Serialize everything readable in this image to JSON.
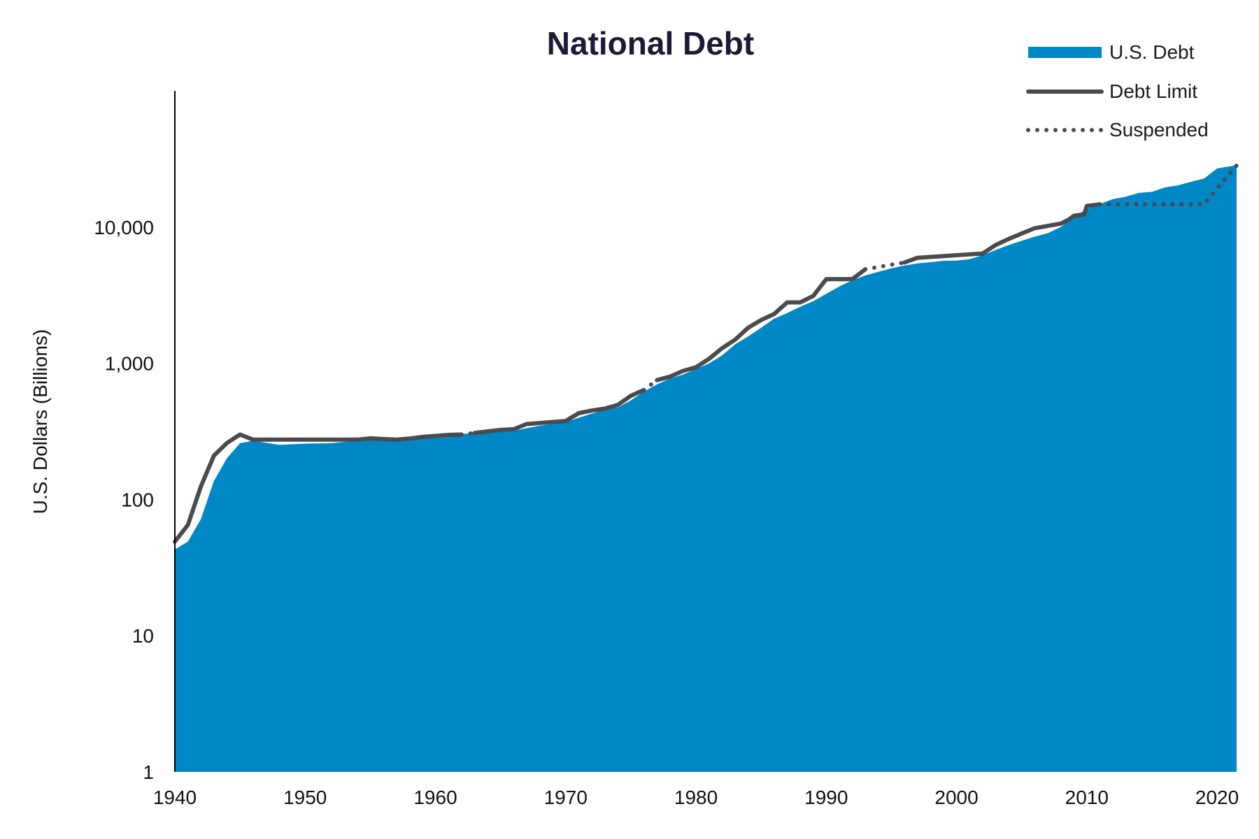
{
  "chart_data": {
    "type": "area",
    "title": "National Debt",
    "ylabel": "U.S. Dollars (Billions)",
    "xlabel": "",
    "y_scale": "log",
    "xlim": [
      1940,
      2021.5
    ],
    "ylim": [
      1,
      100000
    ],
    "x_ticks": [
      1940,
      1950,
      1960,
      1970,
      1980,
      1990,
      2000,
      2010,
      2020
    ],
    "x_tick_labels": [
      "1940",
      "1950",
      "1960",
      "1970",
      "1980",
      "1990",
      "2000",
      "2010",
      "2020"
    ],
    "y_ticks": [
      1,
      10,
      100,
      1000,
      10000
    ],
    "y_tick_labels": [
      "1",
      "10",
      "100",
      "1,000",
      "10,000"
    ],
    "grid": false,
    "legend_position": "top-right",
    "colors": {
      "debt": "#0088c6",
      "limit": "#4a4a4f",
      "title": "#1d1a36"
    },
    "series": [
      {
        "name": "U.S. Debt",
        "kind": "area",
        "points": [
          [
            1940,
            43
          ],
          [
            1941,
            49
          ],
          [
            1942,
            72
          ],
          [
            1943,
            137
          ],
          [
            1944,
            201
          ],
          [
            1945,
            259
          ],
          [
            1946,
            270
          ],
          [
            1948,
            252
          ],
          [
            1950,
            257
          ],
          [
            1952,
            259
          ],
          [
            1954,
            271
          ],
          [
            1956,
            273
          ],
          [
            1958,
            276
          ],
          [
            1960,
            291
          ],
          [
            1962,
            303
          ],
          [
            1964,
            312
          ],
          [
            1966,
            320
          ],
          [
            1968,
            348
          ],
          [
            1970,
            371
          ],
          [
            1971,
            398
          ],
          [
            1972,
            427
          ],
          [
            1973,
            458
          ],
          [
            1974,
            475
          ],
          [
            1975,
            533
          ],
          [
            1976,
            620
          ],
          [
            1977,
            699
          ],
          [
            1978,
            772
          ],
          [
            1979,
            827
          ],
          [
            1980,
            908
          ],
          [
            1981,
            998
          ],
          [
            1982,
            1142
          ],
          [
            1983,
            1377
          ],
          [
            1984,
            1572
          ],
          [
            1985,
            1823
          ],
          [
            1986,
            2125
          ],
          [
            1987,
            2340
          ],
          [
            1988,
            2602
          ],
          [
            1989,
            2857
          ],
          [
            1990,
            3233
          ],
          [
            1991,
            3665
          ],
          [
            1992,
            4065
          ],
          [
            1993,
            4411
          ],
          [
            1994,
            4693
          ],
          [
            1995,
            4974
          ],
          [
            1996,
            5225
          ],
          [
            1997,
            5413
          ],
          [
            1998,
            5526
          ],
          [
            1999,
            5656
          ],
          [
            2000,
            5674
          ],
          [
            2001,
            5807
          ],
          [
            2002,
            6228
          ],
          [
            2003,
            6783
          ],
          [
            2004,
            7379
          ],
          [
            2005,
            7933
          ],
          [
            2006,
            8507
          ],
          [
            2007,
            9008
          ],
          [
            2008,
            10025
          ],
          [
            2009,
            11910
          ],
          [
            2010,
            13562
          ],
          [
            2011,
            14790
          ],
          [
            2012,
            16066
          ],
          [
            2013,
            16738
          ],
          [
            2014,
            17824
          ],
          [
            2015,
            18151
          ],
          [
            2016,
            19573
          ],
          [
            2017,
            20245
          ],
          [
            2018,
            21516
          ],
          [
            2019,
            22719
          ],
          [
            2020,
            26945
          ],
          [
            2021.5,
            28500
          ]
        ]
      },
      {
        "name": "Debt Limit",
        "kind": "line",
        "segments": [
          [
            [
              1940,
              49
            ],
            [
              1941,
              65
            ],
            [
              1942,
              125
            ],
            [
              1943,
              210
            ],
            [
              1944,
              260
            ],
            [
              1945,
              300
            ],
            [
              1946,
              275
            ],
            [
              1954,
              275
            ],
            [
              1955,
              281
            ],
            [
              1956,
              278
            ],
            [
              1957,
              275
            ],
            [
              1958,
              280
            ],
            [
              1959,
              288
            ],
            [
              1960,
              293
            ],
            [
              1961,
              298
            ],
            [
              1962,
              300
            ]
          ],
          [
            [
              1963,
              308
            ],
            [
              1965,
              324
            ],
            [
              1966,
              328
            ],
            [
              1967,
              358
            ],
            [
              1970,
              377
            ],
            [
              1971,
              430
            ],
            [
              1972,
              450
            ],
            [
              1973,
              465
            ],
            [
              1974,
              495
            ],
            [
              1975,
              577
            ],
            [
              1976,
              636
            ]
          ],
          [
            [
              1977,
              752
            ],
            [
              1978,
              798
            ],
            [
              1979,
              879
            ],
            [
              1980,
              935
            ],
            [
              1981,
              1079
            ],
            [
              1982,
              1290
            ],
            [
              1983,
              1490
            ],
            [
              1984,
              1824
            ],
            [
              1985,
              2079
            ],
            [
              1986,
              2300
            ],
            [
              1987,
              2800
            ],
            [
              1988,
              2800
            ],
            [
              1989,
              3123
            ],
            [
              1990,
              4145
            ],
            [
              1992,
              4145
            ],
            [
              1993,
              4900
            ]
          ],
          [
            [
              1996,
              5500
            ],
            [
              1997,
              5950
            ],
            [
              2002,
              6400
            ],
            [
              2003,
              7384
            ],
            [
              2004,
              8184
            ],
            [
              2005,
              8965
            ],
            [
              2006,
              9815
            ],
            [
              2008,
              10615
            ],
            [
              2008.6,
              11315
            ],
            [
              2009,
              12104
            ],
            [
              2009.8,
              12394
            ],
            [
              2010,
              14294
            ],
            [
              2011,
              14694
            ]
          ],
          [
            [
              2020.5,
              28401
            ]
          ]
        ]
      },
      {
        "name": "Suspended",
        "kind": "dotted",
        "segments": [
          [
            [
              1962,
              300
            ],
            [
              1963,
              308
            ]
          ],
          [
            [
              1976,
              636
            ],
            [
              1977,
              752
            ]
          ],
          [
            [
              1993,
              4900
            ],
            [
              1996,
              5500
            ]
          ],
          [
            [
              2011,
              14694
            ],
            [
              2019,
              14694
            ],
            [
              2021.5,
              28401
            ]
          ]
        ]
      }
    ]
  }
}
